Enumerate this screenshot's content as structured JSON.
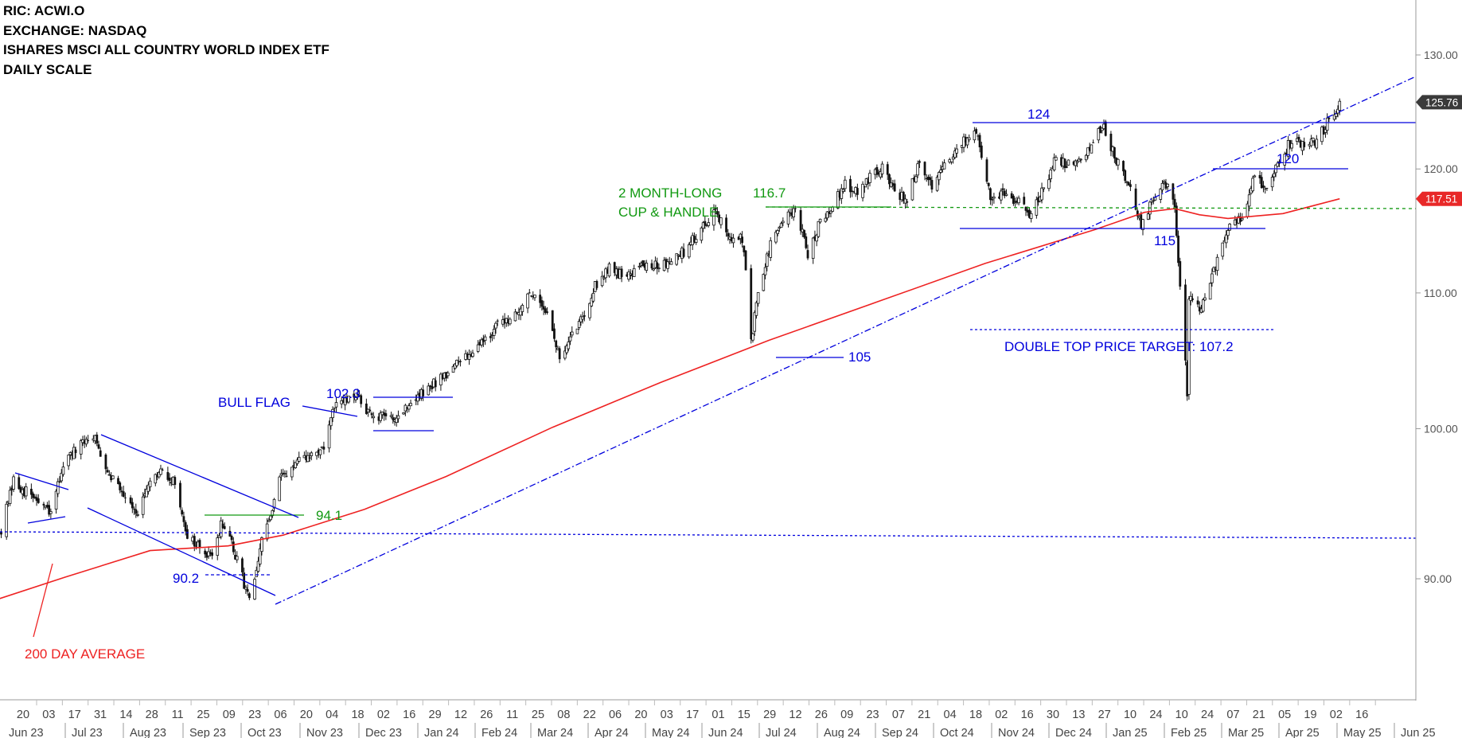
{
  "header": {
    "ric": "RIC: ACWI.O",
    "exchange": "EXCHANGE: NASDAQ",
    "name": "ISHARES MSCI ALL COUNTRY WORLD INDEX ETF",
    "scale": "DAILY SCALE"
  },
  "chart_data": {
    "type": "candlestick",
    "scale": "log",
    "ylim": [
      82,
      135
    ],
    "y_ticks": [
      "90.00",
      "100.00",
      "110.00",
      "120.00",
      "130.00"
    ],
    "x_days": [
      "20",
      "03",
      "17",
      "31",
      "14",
      "28",
      "11",
      "25",
      "09",
      "23",
      "06",
      "20",
      "04",
      "18",
      "02",
      "16",
      "29",
      "12",
      "26",
      "11",
      "25",
      "08",
      "22",
      "06",
      "20",
      "03",
      "17",
      "01",
      "15",
      "29",
      "12",
      "26",
      "09",
      "23",
      "07",
      "21",
      "04",
      "18",
      "02",
      "16",
      "30",
      "13",
      "27",
      "10",
      "24",
      "10",
      "24",
      "07",
      "21",
      "05",
      "19",
      "02",
      "16"
    ],
    "x_months": [
      "Jun 23",
      "Jul 23",
      "Aug 23",
      "Sep 23",
      "Oct 23",
      "Nov 23",
      "Dec 23",
      "Jan 24",
      "Feb 24",
      "Mar 24",
      "Apr 24",
      "May 24",
      "Jun 24",
      "Jul 24",
      "Aug 24",
      "Sep 24",
      "Oct 24",
      "Nov 24",
      "Dec 24",
      "Jan 25",
      "Feb 25",
      "Mar 25",
      "Apr 25",
      "May 25",
      "Jun 25"
    ],
    "price_path": [
      [
        "2023-06-09",
        93.2
      ],
      [
        "2023-06-16",
        96.3
      ],
      [
        "2023-06-30",
        95.0
      ],
      [
        "2023-07-07",
        94.1
      ],
      [
        "2023-07-14",
        97.6
      ],
      [
        "2023-07-31",
        99.6
      ],
      [
        "2023-08-04",
        98.2
      ],
      [
        "2023-08-11",
        96.6
      ],
      [
        "2023-08-25",
        94.3
      ],
      [
        "2023-09-01",
        96.1
      ],
      [
        "2023-09-08",
        97.1
      ],
      [
        "2023-09-15",
        96.2
      ],
      [
        "2023-09-22",
        92.8
      ],
      [
        "2023-09-29",
        91.9
      ],
      [
        "2023-10-06",
        91.2
      ],
      [
        "2023-10-11",
        93.6
      ],
      [
        "2023-10-16",
        92.5
      ],
      [
        "2023-10-20",
        91.1
      ],
      [
        "2023-10-27",
        88.7
      ],
      [
        "2023-11-01",
        90.8
      ],
      [
        "2023-11-03",
        92.6
      ],
      [
        "2023-11-08",
        94.0
      ],
      [
        "2023-11-14",
        96.8
      ],
      [
        "2023-11-21",
        97.4
      ],
      [
        "2023-11-30",
        98.1
      ],
      [
        "2023-12-08",
        98.7
      ],
      [
        "2023-12-14",
        101.5
      ],
      [
        "2023-12-20",
        101.9
      ],
      [
        "2023-12-28",
        102.2
      ],
      [
        "2024-01-05",
        100.6
      ],
      [
        "2024-01-12",
        100.9
      ],
      [
        "2024-01-19",
        100.9
      ],
      [
        "2024-01-26",
        101.9
      ],
      [
        "2024-02-02",
        102.5
      ],
      [
        "2024-02-13",
        103.8
      ],
      [
        "2024-02-23",
        104.8
      ],
      [
        "2024-03-08",
        106.6
      ],
      [
        "2024-03-15",
        107.4
      ],
      [
        "2024-03-28",
        108.9
      ],
      [
        "2024-04-05",
        110.1
      ],
      [
        "2024-04-12",
        108.5
      ],
      [
        "2024-04-19",
        105.0
      ],
      [
        "2024-04-26",
        106.7
      ],
      [
        "2024-05-03",
        108.6
      ],
      [
        "2024-05-10",
        110.8
      ],
      [
        "2024-05-17",
        112.1
      ],
      [
        "2024-05-24",
        111.3
      ],
      [
        "2024-05-31",
        111.9
      ],
      [
        "2024-06-07",
        112.3
      ],
      [
        "2024-06-14",
        112.0
      ],
      [
        "2024-06-21",
        112.7
      ],
      [
        "2024-06-28",
        113.2
      ],
      [
        "2024-07-03",
        114.2
      ],
      [
        "2024-07-10",
        115.5
      ],
      [
        "2024-07-16",
        116.7
      ],
      [
        "2024-07-24",
        114.0
      ],
      [
        "2024-07-31",
        114.3
      ],
      [
        "2024-08-02",
        111.6
      ],
      [
        "2024-08-05",
        106.2
      ],
      [
        "2024-08-09",
        110.0
      ],
      [
        "2024-08-16",
        113.8
      ],
      [
        "2024-08-23",
        115.6
      ],
      [
        "2024-08-30",
        116.7
      ],
      [
        "2024-09-06",
        113.0
      ],
      [
        "2024-09-13",
        115.7
      ],
      [
        "2024-09-20",
        117.0
      ],
      [
        "2024-09-27",
        118.7
      ],
      [
        "2024-10-04",
        118.2
      ],
      [
        "2024-10-11",
        119.4
      ],
      [
        "2024-10-18",
        120.0
      ],
      [
        "2024-10-25",
        118.2
      ],
      [
        "2024-11-01",
        117.3
      ],
      [
        "2024-11-08",
        120.6
      ],
      [
        "2024-11-15",
        118.6
      ],
      [
        "2024-11-22",
        120.1
      ],
      [
        "2024-11-29",
        121.6
      ],
      [
        "2024-12-06",
        122.9
      ],
      [
        "2024-12-11",
        122.9
      ],
      [
        "2024-12-18",
        117.3
      ],
      [
        "2024-12-27",
        117.9
      ],
      [
        "2025-01-03",
        117.3
      ],
      [
        "2025-01-10",
        116.0
      ],
      [
        "2025-01-17",
        118.5
      ],
      [
        "2025-01-24",
        121.0
      ],
      [
        "2025-01-31",
        120.3
      ],
      [
        "2025-02-07",
        120.6
      ],
      [
        "2025-02-19",
        123.8
      ],
      [
        "2025-02-28",
        120.5
      ],
      [
        "2025-03-07",
        118.6
      ],
      [
        "2025-03-13",
        115.2
      ],
      [
        "2025-03-21",
        117.8
      ],
      [
        "2025-03-26",
        119.1
      ],
      [
        "2025-04-01",
        116.9
      ],
      [
        "2025-04-03",
        112.0
      ],
      [
        "2025-04-08",
        102.7
      ],
      [
        "2025-04-09",
        109.6
      ],
      [
        "2025-04-16",
        108.8
      ],
      [
        "2025-04-24",
        112.0
      ],
      [
        "2025-05-02",
        115.4
      ],
      [
        "2025-05-09",
        116.0
      ],
      [
        "2025-05-16",
        119.2
      ],
      [
        "2025-05-23",
        118.6
      ],
      [
        "2025-05-30",
        120.6
      ],
      [
        "2025-06-06",
        122.5
      ],
      [
        "2025-06-13",
        122.1
      ],
      [
        "2025-06-20",
        122.3
      ],
      [
        "2025-06-27",
        124.2
      ],
      [
        "2025-07-03",
        125.76
      ]
    ],
    "ma200_path": [
      [
        "2023-06-01",
        88.5
      ],
      [
        "2023-07-15",
        90.1
      ],
      [
        "2023-09-01",
        91.8
      ],
      [
        "2023-10-15",
        92.1
      ],
      [
        "2023-11-15",
        92.8
      ],
      [
        "2023-12-31",
        94.5
      ],
      [
        "2024-02-15",
        96.7
      ],
      [
        "2024-04-15",
        100.1
      ],
      [
        "2024-06-15",
        103.3
      ],
      [
        "2024-08-15",
        106.4
      ],
      [
        "2024-10-15",
        109.3
      ],
      [
        "2024-12-15",
        112.3
      ],
      [
        "2025-02-15",
        115.0
      ],
      [
        "2025-03-15",
        116.4
      ],
      [
        "2025-04-01",
        116.7
      ],
      [
        "2025-04-15",
        116.2
      ],
      [
        "2025-05-01",
        115.9
      ],
      [
        "2025-06-01",
        116.3
      ],
      [
        "2025-07-03",
        117.51
      ]
    ],
    "levels": {
      "top": "124",
      "target": "107.2"
    },
    "last_price": "125.76",
    "ma_value": "117.51",
    "colors": {
      "annotation_blue": "#0000dd",
      "annotation_green": "#119911",
      "ma_red": "#ee2222",
      "candle": "#111111"
    }
  },
  "annotations": {
    "bull_flag": "BULL FLAG",
    "flag_top": "102.3",
    "cup_handle_line1": "2 MONTH-LONG",
    "cup_handle_line2": "CUP & HANDLE",
    "cup_level": "116.7",
    "level_124": "124",
    "level_120": "120",
    "level_115": "115",
    "level_105": "105",
    "level_941": "94.1",
    "level_902": "90.2",
    "double_top": "DOUBLE TOP PRICE TARGET: 107.2",
    "ma_label": "200 DAY AVERAGE"
  }
}
